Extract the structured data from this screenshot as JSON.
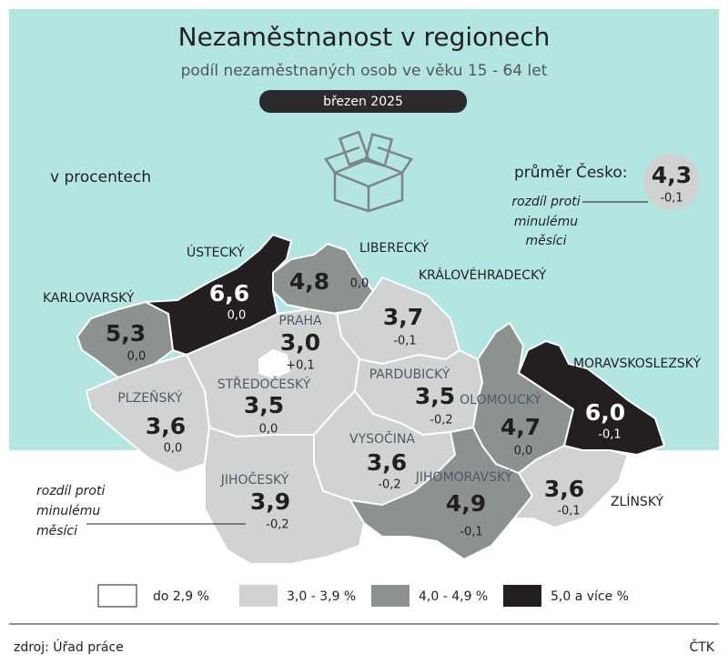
{
  "header": {
    "title": "Nezaměstnanost v regionech",
    "subtitle": "podíl nezaměstnaných osob ve věku 15 - 64 let",
    "date": "březen 2025"
  },
  "unit_note": "v procentech",
  "average": {
    "label": "průměr Česko:",
    "value": "4,3",
    "change": "-0,1",
    "note": [
      "rozdíl proti",
      "minulému",
      "měsíci"
    ]
  },
  "regions": [
    {
      "name": "KARLOVARSKÝ",
      "value": "5,3",
      "change": "0,0"
    },
    {
      "name": "ÚSTECKÝ",
      "value": "6,6",
      "change": "0,0"
    },
    {
      "name": "LIBERECKÝ",
      "value": "4,8",
      "change": "0,0"
    },
    {
      "name": "KRÁLOVÉHRADECKÝ",
      "value": "3,7",
      "change": "-0,1"
    },
    {
      "name": "PRAHA",
      "value": "3,0",
      "change": "+0,1"
    },
    {
      "name": "STŘEDOČESKÝ",
      "value": "3,5",
      "change": "0,0"
    },
    {
      "name": "PLZEŇSKÝ",
      "value": "3,6",
      "change": "0,0"
    },
    {
      "name": "PARDUBICKÝ",
      "value": "3,5",
      "change": "-0,2"
    },
    {
      "name": "OLOMOUCKÝ",
      "value": "4,7",
      "change": "0,0"
    },
    {
      "name": "MORAVSKOSLEZSKÝ",
      "value": "6,0",
      "change": "-0,1"
    },
    {
      "name": "VYSOČINA",
      "value": "3,6",
      "change": "-0,2"
    },
    {
      "name": "JIHOČESKÝ",
      "value": "3,9",
      "change": "-0,2"
    },
    {
      "name": "JIHOMORAVSKÝ",
      "value": "4,9",
      "change": "-0,1"
    },
    {
      "name": "ZLÍNSKÝ",
      "value": "3,6",
      "change": "-0,1"
    }
  ],
  "change_note": [
    "rozdíl proti",
    "minulému",
    "měsíci"
  ],
  "legend": [
    "do 2,9 %",
    "3,0 - 3,9 %",
    "4,0 - 4,9 %",
    "5,0 a více %"
  ],
  "footer": {
    "source": "zdroj: Úřad práce",
    "agency": "ČTK"
  }
}
